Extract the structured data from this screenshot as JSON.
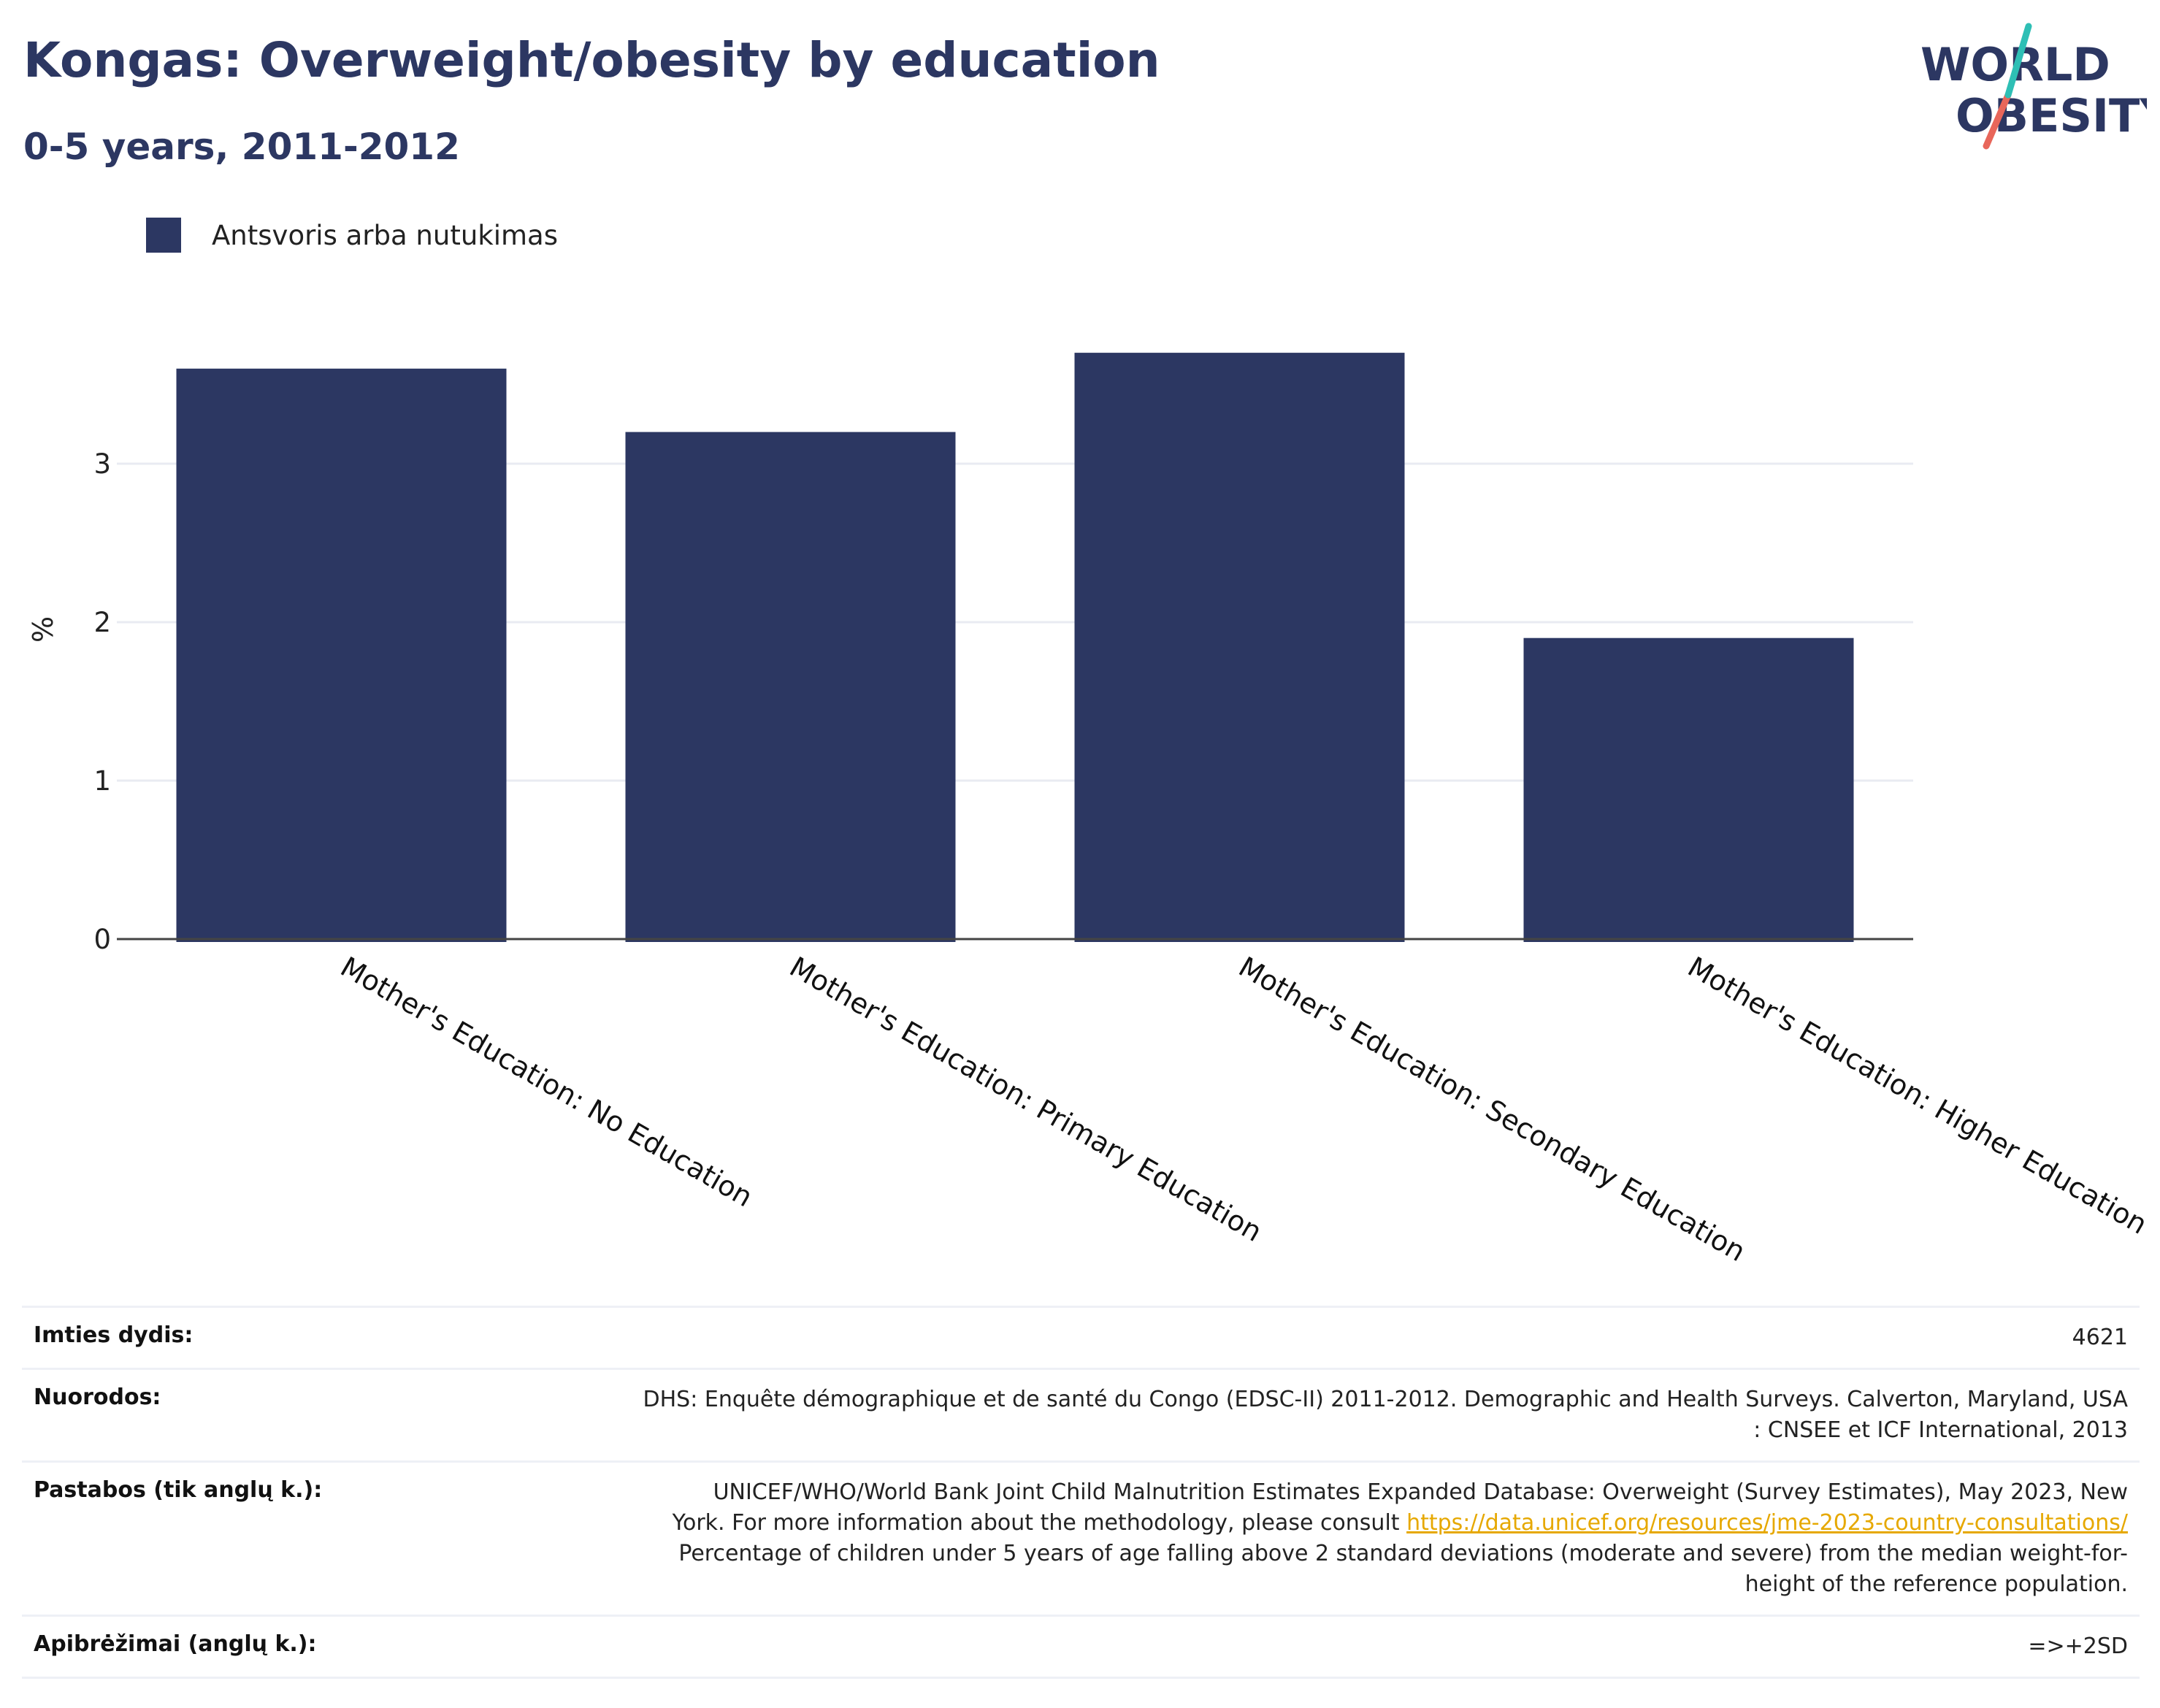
{
  "header": {
    "title": "Kongas: Overweight/obesity by education",
    "subtitle": "0-5 years, 2011-2012"
  },
  "logo": {
    "line1": "WORLD",
    "line2": "OBESITY"
  },
  "legend": {
    "label": "Antsvoris arba nutukimas",
    "color": "#2c3762"
  },
  "chart_data": {
    "type": "bar",
    "categories": [
      "Mother's Education: No Education",
      "Mother's Education: Primary Education",
      "Mother's Education: Secondary Education",
      "Mother's Education: Higher Education"
    ],
    "series": [
      {
        "name": "Antsvoris arba nutukimas",
        "values": [
          3.6,
          3.2,
          3.7,
          1.9
        ],
        "color": "#2c3762"
      }
    ],
    "ylabel": "%",
    "yticks": [
      "0",
      "1",
      "2",
      "3"
    ],
    "ylim": [
      0,
      3.8
    ],
    "grid": true,
    "legend_position": "top-left"
  },
  "info": {
    "sample": {
      "label": "Imties dydis:",
      "value": "4621"
    },
    "references": {
      "label": "Nuorodos:",
      "line1": "DHS: Enquête démographique et de santé du Congo (EDSC-II) 2011-2012. Demographic and Health Surveys. Calverton, Maryland, USA",
      "line2": ": CNSEE et ICF International, 2013"
    },
    "notes": {
      "label": "Pastabos (tik anglų k.):",
      "line1": "UNICEF/WHO/World Bank Joint Child Malnutrition Estimates Expanded Database: Overweight (Survey Estimates), May 2023, New",
      "line2_prefix": "York. For more information about the methodology, please consult",
      "link": "https://data.unicef.org/resources/jme-2023-country-consultations/",
      "line3": "Percentage of children under 5 years of age falling above 2 standard deviations (moderate and severe) from the median weight-for-",
      "line4": "height of the reference population."
    },
    "definitions": {
      "label": "Apibrėžimai (anglų k.):",
      "value": "=>+2SD"
    }
  }
}
